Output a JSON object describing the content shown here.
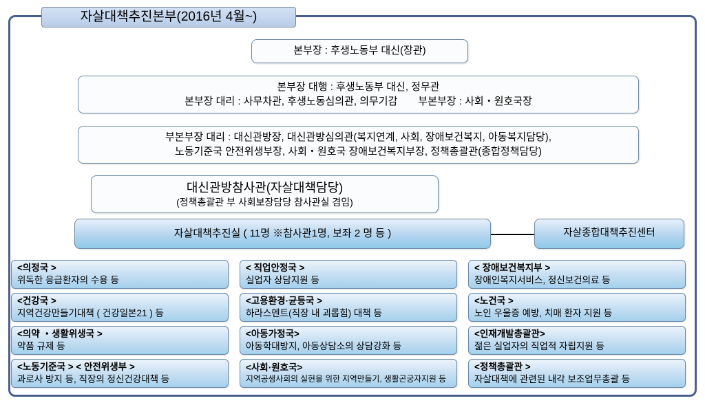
{
  "frame": {
    "border_color": "#4a5f8a",
    "title": "자살대책추진본부(2016년 4월~)",
    "title_bg_from": "#d4e1f5",
    "title_bg_to": "#b8cce8"
  },
  "top_boxes": {
    "head": "본부장 : 후생노동부 대신(장관)",
    "deputy_line1": "본부장 대행 : 후생노동부 대신, 정무관",
    "deputy_line2": "본부장 대리 : 사무차관, 후생노동심의관, 의무기감  부본부장 : 사회・원호국장",
    "sub_line1": "부본부장 대리 :  대신관방장, 대신관방심의관(복지연계, 사회, 장애보건복지, 아동복지담당),",
    "sub_line2": "노동기준국 안전위생부장, 사회・원호국 장애보건복지부장, 정책총괄관(종합정책담당)",
    "advisor_line1": "대신관방참사관(자살대책담당)",
    "advisor_line2": "(정책총괄관 부 사회보장담당 참사관실 겸임)",
    "office": "자살대책추진실 ( 11명 ※참사관1명, 보좌 2 명 등  )"
  },
  "side_center": "자살종합대책추진센터",
  "grid": [
    [
      {
        "hd": "<의정국 >",
        "body": "위독한 응급환자의 수용 등"
      },
      {
        "hd": "< 직업안정국 >",
        "body": "실업자 상담지원 등"
      },
      {
        "hd": "< 장애보건복지부 >",
        "body": "장애인복지서비스, 정신보건의료 등"
      }
    ],
    [
      {
        "hd": "<건강국 >",
        "body": "지역건강만들기대책 ( 건강일본21 ) 등"
      },
      {
        "hd": "<고용환경·균등국 >",
        "body": "하라스멘트(직장 내 괴롭힘) 대책 등"
      },
      {
        "hd": "<노건국 >",
        "body": "노인 우울증 예방, 치매 환자 지원 등"
      }
    ],
    [
      {
        "hd": "<의약 ・생활위생국 >",
        "body": "약품 규제 등"
      },
      {
        "hd": "<아동가정국>",
        "body": "아동학대방지, 아동상담소의 상담강화 등"
      },
      {
        "hd": "<인재개발총괄관>",
        "body": "젊은 실업자의 직업적 자립지원 등"
      }
    ],
    [
      {
        "hd": "<노동기준국 >  < 안전위생부 >",
        "body": "과로사 방지 등, 직장의 정신건강대책 등"
      },
      {
        "hd": "<사회·원호국>",
        "body": "지역공생사회의 실현을 위한 지역만들기, 생활곤궁자지원 등",
        "small": true
      },
      {
        "hd": "<정책총괄관 >",
        "body": "자살대책에 관련된 내각 보조업무총괄 등"
      }
    ]
  ],
  "colors": {
    "white_box_bg": "#fbfcfd",
    "box_border": "#6b8aa8",
    "blue_grad_from": "#e8f0fa",
    "blue_grad_mid": "#b4d5ef",
    "blue_grad_to": "#8ecae8",
    "dept_grad_from": "#ecf4fb",
    "dept_grad_mid": "#c4def2",
    "dept_grad_to": "#a4d0ec"
  }
}
